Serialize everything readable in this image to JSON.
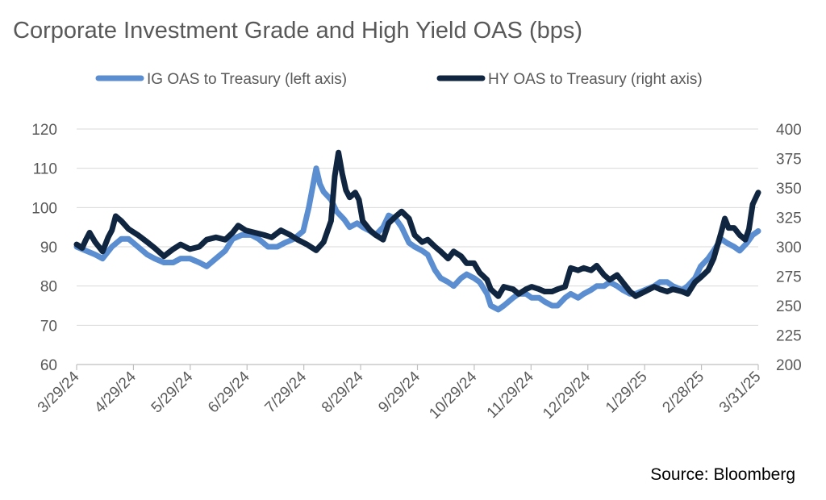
{
  "chart_data": {
    "type": "line",
    "title": "Corporate Investment Grade and High Yield OAS (bps)",
    "source": "Source: Bloomberg",
    "legend_position": "top",
    "grid": true,
    "x_tick_labels": [
      "3/29/24",
      "4/29/24",
      "5/29/24",
      "6/29/24",
      "7/29/24",
      "8/29/24",
      "9/29/24",
      "10/29/24",
      "11/29/24",
      "12/29/24",
      "1/29/25",
      "2/28/25",
      "3/31/25"
    ],
    "x_range": [
      "2024-03-29",
      "2025-03-31"
    ],
    "y_left": {
      "ylim": [
        60,
        120
      ],
      "ticks": [
        60,
        70,
        80,
        90,
        100,
        110,
        120
      ]
    },
    "y_right": {
      "ylim": [
        200,
        400
      ],
      "ticks": [
        200,
        225,
        250,
        275,
        300,
        325,
        350,
        375,
        400
      ]
    },
    "series": [
      {
        "name": "IG OAS to Treasury (left axis)",
        "axis": "left",
        "color": "#5b8dd1",
        "points": [
          [
            "2024-03-29",
            90
          ],
          [
            "2024-04-03",
            89
          ],
          [
            "2024-04-08",
            88
          ],
          [
            "2024-04-12",
            87
          ],
          [
            "2024-04-17",
            90
          ],
          [
            "2024-04-22",
            92
          ],
          [
            "2024-04-26",
            92
          ],
          [
            "2024-05-01",
            90
          ],
          [
            "2024-05-06",
            88
          ],
          [
            "2024-05-10",
            87
          ],
          [
            "2024-05-15",
            86
          ],
          [
            "2024-05-20",
            86
          ],
          [
            "2024-05-24",
            87
          ],
          [
            "2024-05-29",
            87
          ],
          [
            "2024-06-03",
            86
          ],
          [
            "2024-06-07",
            85
          ],
          [
            "2024-06-12",
            87
          ],
          [
            "2024-06-17",
            89
          ],
          [
            "2024-06-21",
            92
          ],
          [
            "2024-06-26",
            93
          ],
          [
            "2024-07-01",
            93
          ],
          [
            "2024-07-05",
            92
          ],
          [
            "2024-07-10",
            90
          ],
          [
            "2024-07-15",
            90
          ],
          [
            "2024-07-19",
            91
          ],
          [
            "2024-07-24",
            92
          ],
          [
            "2024-07-29",
            94
          ],
          [
            "2024-08-01",
            100
          ],
          [
            "2024-08-05",
            110
          ],
          [
            "2024-08-07",
            106
          ],
          [
            "2024-08-09",
            104
          ],
          [
            "2024-08-13",
            102
          ],
          [
            "2024-08-16",
            99
          ],
          [
            "2024-08-20",
            97
          ],
          [
            "2024-08-23",
            95
          ],
          [
            "2024-08-27",
            96
          ],
          [
            "2024-08-30",
            95
          ],
          [
            "2024-09-03",
            94
          ],
          [
            "2024-09-06",
            93
          ],
          [
            "2024-09-10",
            95
          ],
          [
            "2024-09-13",
            98
          ],
          [
            "2024-09-17",
            97
          ],
          [
            "2024-09-20",
            95
          ],
          [
            "2024-09-24",
            91
          ],
          [
            "2024-09-27",
            90
          ],
          [
            "2024-10-01",
            89
          ],
          [
            "2024-10-04",
            88
          ],
          [
            "2024-10-08",
            84
          ],
          [
            "2024-10-11",
            82
          ],
          [
            "2024-10-15",
            81
          ],
          [
            "2024-10-18",
            80
          ],
          [
            "2024-10-22",
            82
          ],
          [
            "2024-10-25",
            83
          ],
          [
            "2024-10-29",
            82
          ],
          [
            "2024-11-01",
            81
          ],
          [
            "2024-11-05",
            78
          ],
          [
            "2024-11-07",
            75
          ],
          [
            "2024-11-11",
            74
          ],
          [
            "2024-11-14",
            75
          ],
          [
            "2024-11-19",
            77
          ],
          [
            "2024-11-22",
            78
          ],
          [
            "2024-11-26",
            78
          ],
          [
            "2024-11-29",
            77
          ],
          [
            "2024-12-03",
            77
          ],
          [
            "2024-12-06",
            76
          ],
          [
            "2024-12-10",
            75
          ],
          [
            "2024-12-13",
            75
          ],
          [
            "2024-12-17",
            77
          ],
          [
            "2024-12-20",
            78
          ],
          [
            "2024-12-24",
            77
          ],
          [
            "2024-12-27",
            78
          ],
          [
            "2024-12-31",
            79
          ],
          [
            "2025-01-03",
            80
          ],
          [
            "2025-01-07",
            80
          ],
          [
            "2025-01-10",
            81
          ],
          [
            "2025-01-14",
            80
          ],
          [
            "2025-01-17",
            79
          ],
          [
            "2025-01-21",
            78
          ],
          [
            "2025-01-24",
            78
          ],
          [
            "2025-01-29",
            79
          ],
          [
            "2025-02-03",
            80
          ],
          [
            "2025-02-06",
            81
          ],
          [
            "2025-02-10",
            81
          ],
          [
            "2025-02-13",
            80
          ],
          [
            "2025-02-18",
            79
          ],
          [
            "2025-02-21",
            80
          ],
          [
            "2025-02-25",
            82
          ],
          [
            "2025-02-28",
            85
          ],
          [
            "2025-03-04",
            87
          ],
          [
            "2025-03-07",
            89
          ],
          [
            "2025-03-11",
            92
          ],
          [
            "2025-03-14",
            91
          ],
          [
            "2025-03-18",
            90
          ],
          [
            "2025-03-21",
            89
          ],
          [
            "2025-03-25",
            91
          ],
          [
            "2025-03-28",
            93
          ],
          [
            "2025-03-31",
            94
          ]
        ]
      },
      {
        "name": "HY OAS to Treasury (right axis)",
        "axis": "right",
        "color": "#0f2540",
        "points": [
          [
            "2024-03-29",
            302
          ],
          [
            "2024-04-01",
            299
          ],
          [
            "2024-04-03",
            306
          ],
          [
            "2024-04-05",
            312
          ],
          [
            "2024-04-08",
            304
          ],
          [
            "2024-04-10",
            300
          ],
          [
            "2024-04-12",
            296
          ],
          [
            "2024-04-15",
            308
          ],
          [
            "2024-04-17",
            314
          ],
          [
            "2024-04-19",
            326
          ],
          [
            "2024-04-22",
            322
          ],
          [
            "2024-04-26",
            315
          ],
          [
            "2024-05-01",
            310
          ],
          [
            "2024-05-06",
            304
          ],
          [
            "2024-05-10",
            299
          ],
          [
            "2024-05-15",
            292
          ],
          [
            "2024-05-20",
            298
          ],
          [
            "2024-05-24",
            302
          ],
          [
            "2024-05-29",
            298
          ],
          [
            "2024-06-03",
            300
          ],
          [
            "2024-06-07",
            306
          ],
          [
            "2024-06-12",
            308
          ],
          [
            "2024-06-17",
            306
          ],
          [
            "2024-06-21",
            312
          ],
          [
            "2024-06-24",
            318
          ],
          [
            "2024-06-28",
            314
          ],
          [
            "2024-07-03",
            312
          ],
          [
            "2024-07-08",
            310
          ],
          [
            "2024-07-12",
            308
          ],
          [
            "2024-07-17",
            314
          ],
          [
            "2024-07-22",
            310
          ],
          [
            "2024-07-26",
            306
          ],
          [
            "2024-07-31",
            302
          ],
          [
            "2024-08-05",
            297
          ],
          [
            "2024-08-09",
            304
          ],
          [
            "2024-08-13",
            322
          ],
          [
            "2024-08-15",
            360
          ],
          [
            "2024-08-17",
            380
          ],
          [
            "2024-08-19",
            362
          ],
          [
            "2024-08-21",
            348
          ],
          [
            "2024-08-23",
            342
          ],
          [
            "2024-08-26",
            346
          ],
          [
            "2024-08-28",
            340
          ],
          [
            "2024-08-30",
            322
          ],
          [
            "2024-09-03",
            314
          ],
          [
            "2024-09-06",
            310
          ],
          [
            "2024-09-10",
            306
          ],
          [
            "2024-09-13",
            320
          ],
          [
            "2024-09-17",
            326
          ],
          [
            "2024-09-20",
            330
          ],
          [
            "2024-09-24",
            324
          ],
          [
            "2024-09-27",
            310
          ],
          [
            "2024-10-01",
            304
          ],
          [
            "2024-10-04",
            306
          ],
          [
            "2024-10-08",
            300
          ],
          [
            "2024-10-11",
            296
          ],
          [
            "2024-10-15",
            290
          ],
          [
            "2024-10-18",
            296
          ],
          [
            "2024-10-22",
            292
          ],
          [
            "2024-10-25",
            286
          ],
          [
            "2024-10-29",
            286
          ],
          [
            "2024-11-01",
            278
          ],
          [
            "2024-11-05",
            272
          ],
          [
            "2024-11-07",
            264
          ],
          [
            "2024-11-11",
            258
          ],
          [
            "2024-11-14",
            266
          ],
          [
            "2024-11-19",
            264
          ],
          [
            "2024-11-22",
            260
          ],
          [
            "2024-11-26",
            264
          ],
          [
            "2024-11-29",
            266
          ],
          [
            "2024-12-03",
            264
          ],
          [
            "2024-12-06",
            262
          ],
          [
            "2024-12-10",
            262
          ],
          [
            "2024-12-13",
            264
          ],
          [
            "2024-12-17",
            266
          ],
          [
            "2024-12-20",
            282
          ],
          [
            "2024-12-24",
            280
          ],
          [
            "2024-12-27",
            282
          ],
          [
            "2024-12-31",
            280
          ],
          [
            "2025-01-03",
            284
          ],
          [
            "2025-01-07",
            276
          ],
          [
            "2025-01-10",
            272
          ],
          [
            "2025-01-14",
            276
          ],
          [
            "2025-01-17",
            270
          ],
          [
            "2025-01-21",
            262
          ],
          [
            "2025-01-24",
            258
          ],
          [
            "2025-01-29",
            262
          ],
          [
            "2025-02-03",
            266
          ],
          [
            "2025-02-06",
            264
          ],
          [
            "2025-02-10",
            262
          ],
          [
            "2025-02-13",
            264
          ],
          [
            "2025-02-18",
            262
          ],
          [
            "2025-02-21",
            260
          ],
          [
            "2025-02-25",
            270
          ],
          [
            "2025-02-28",
            274
          ],
          [
            "2025-03-04",
            280
          ],
          [
            "2025-03-07",
            290
          ],
          [
            "2025-03-11",
            312
          ],
          [
            "2025-03-13",
            324
          ],
          [
            "2025-03-15",
            316
          ],
          [
            "2025-03-18",
            316
          ],
          [
            "2025-03-21",
            310
          ],
          [
            "2025-03-24",
            306
          ],
          [
            "2025-03-26",
            315
          ],
          [
            "2025-03-28",
            336
          ],
          [
            "2025-03-31",
            346
          ]
        ]
      }
    ]
  }
}
